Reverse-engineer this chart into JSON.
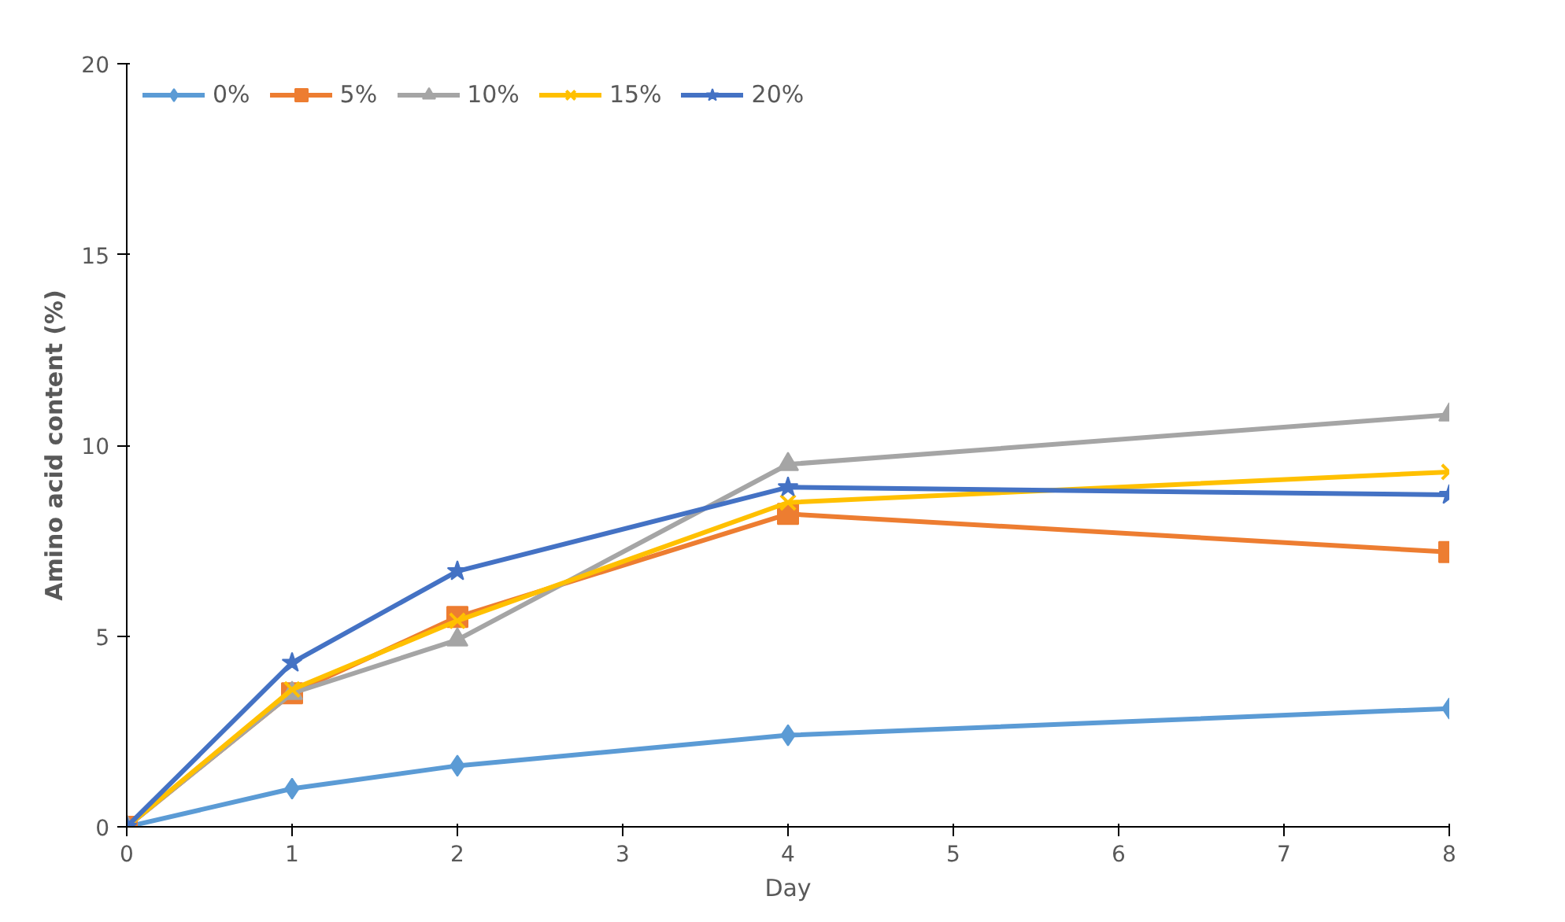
{
  "chart_data": {
    "type": "line",
    "xlabel": "Day",
    "ylabel": "Amino acid content (%)",
    "x": [
      0,
      1,
      2,
      4,
      8
    ],
    "series": [
      {
        "name": "0%",
        "color": "#5b9bd5",
        "marker": "diamond",
        "values": [
          0,
          1.0,
          1.6,
          2.4,
          3.1
        ]
      },
      {
        "name": "5%",
        "color": "#ed7d31",
        "marker": "square",
        "values": [
          0,
          3.5,
          5.5,
          8.2,
          7.2
        ]
      },
      {
        "name": "10%",
        "color": "#a5a5a5",
        "marker": "triangle",
        "values": [
          0,
          3.5,
          4.9,
          9.5,
          10.8
        ]
      },
      {
        "name": "15%",
        "color": "#ffc000",
        "marker": "cross",
        "values": [
          0,
          3.6,
          5.4,
          8.5,
          9.3
        ]
      },
      {
        "name": "20%",
        "color": "#4472c4",
        "marker": "star",
        "values": [
          0,
          4.3,
          6.7,
          8.9,
          8.7
        ]
      }
    ],
    "xlim": [
      0,
      8
    ],
    "ylim": [
      0,
      20
    ],
    "xticks": [
      0,
      1,
      2,
      3,
      4,
      5,
      6,
      7,
      8
    ],
    "yticks": [
      0,
      5,
      10,
      15,
      20
    ],
    "grid": false,
    "legend": "top left",
    "line_style": "solid"
  }
}
